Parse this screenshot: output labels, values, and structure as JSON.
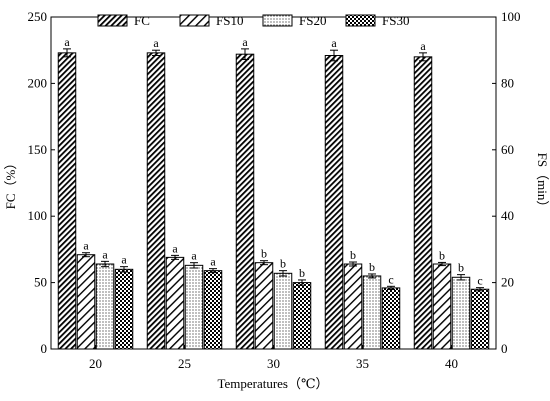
{
  "chart_data": {
    "type": "bar",
    "title": "",
    "xlabel": "Temperatures（℃）",
    "ylabel": "FC（%）",
    "y2label": "FS（min）",
    "categories": [
      "20",
      "25",
      "30",
      "35",
      "40"
    ],
    "ylim": [
      0,
      250
    ],
    "y2lim": [
      0,
      100
    ],
    "yticks": [
      "0",
      "50",
      "100",
      "150",
      "200",
      "250"
    ],
    "y2ticks": [
      "0",
      "20",
      "40",
      "60",
      "80",
      "100"
    ],
    "legend_position": "top",
    "series": [
      {
        "name": "FC",
        "axis": "left",
        "pattern": "diag-dense",
        "values": [
          223,
          223,
          222,
          221,
          220
        ],
        "errors": [
          3,
          2,
          4,
          4,
          3
        ],
        "labels": [
          "a",
          "a",
          "a",
          "a",
          "a"
        ]
      },
      {
        "name": "FS10",
        "axis": "left",
        "pattern": "diag-sparse",
        "values": [
          71,
          69,
          65,
          64,
          64
        ],
        "errors": [
          1.5,
          1.5,
          1.5,
          1.5,
          1.2
        ],
        "labels": [
          "a",
          "a",
          "b",
          "b",
          "b"
        ]
      },
      {
        "name": "FS20",
        "axis": "left",
        "pattern": "dots",
        "values": [
          64,
          63,
          57,
          55,
          54
        ],
        "errors": [
          2,
          2,
          2,
          1.5,
          2
        ],
        "labels": [
          "a",
          "a",
          "b",
          "b",
          "b"
        ]
      },
      {
        "name": "FS30",
        "axis": "left",
        "pattern": "checker",
        "values": [
          60,
          59,
          50,
          46,
          45
        ],
        "errors": [
          2,
          1.5,
          2,
          1.2,
          1.2
        ],
        "labels": [
          "a",
          "a",
          "b",
          "c",
          "c"
        ]
      }
    ]
  }
}
